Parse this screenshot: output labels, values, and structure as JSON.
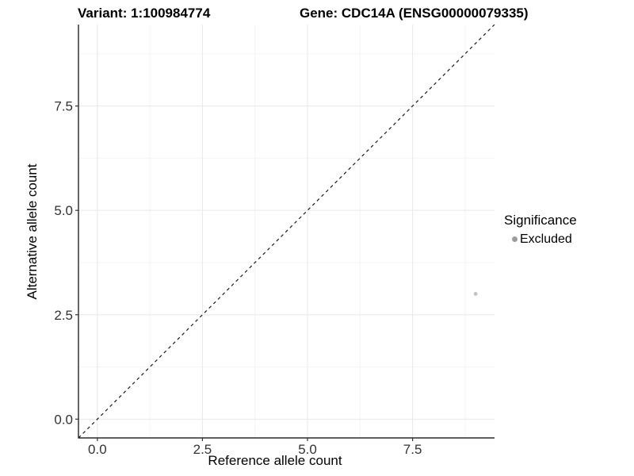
{
  "titles": {
    "variant": "Variant: 1:100984774",
    "gene": "Gene: CDC14A (ENSG00000079335)"
  },
  "chart_data": {
    "type": "scatter",
    "title_left": "Variant: 1:100984774",
    "title_right": "Gene: CDC14A (ENSG00000079335)",
    "xlabel": "Reference allele count",
    "ylabel": "Alternative allele count",
    "xlim": [
      -0.45,
      9.45
    ],
    "ylim": [
      -0.45,
      9.45
    ],
    "x_ticks": [
      0,
      2.5,
      5,
      7.5
    ],
    "y_ticks": [
      0,
      2.5,
      5,
      7.5
    ],
    "x_tick_labels": [
      "0.0",
      "2.5",
      "5.0",
      "7.5"
    ],
    "y_tick_labels": [
      "0.0",
      "2.5",
      "5.0",
      "7.5"
    ],
    "minor_grid": [
      1.25,
      3.75,
      6.25,
      8.75
    ],
    "grid": true,
    "series": [
      {
        "name": "Excluded",
        "points": [
          {
            "x": 9,
            "y": 3
          }
        ]
      }
    ],
    "reference_line": {
      "kind": "identity",
      "slope": 1,
      "intercept": 0,
      "style": "dashed"
    },
    "legend": {
      "title": "Significance",
      "position": "right",
      "entries": [
        {
          "label": "Excluded"
        }
      ]
    }
  },
  "colors": {
    "background": "#ffffff",
    "grid_major": "#e8e8e8",
    "grid_minor": "#f4f4f4",
    "axis_line": "#000000",
    "tick_mark": "#333333",
    "tick_label": "#333333",
    "point": "#c3c3c3",
    "legend_key": "#9c9c9c",
    "reference_line": "#1a1a1a"
  }
}
